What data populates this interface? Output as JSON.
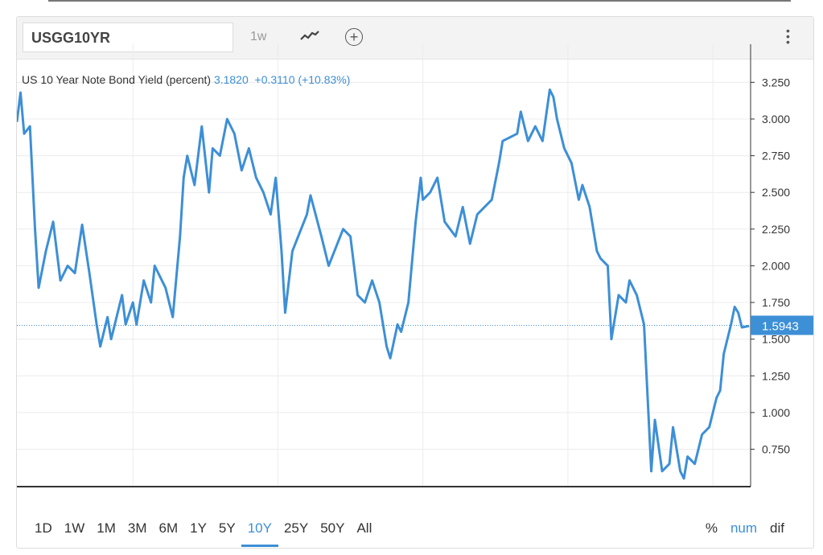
{
  "header": {
    "symbol": "USGG10YR",
    "interval": "1w",
    "chart_type_icon": "line-chart-icon",
    "add_icon": "plus-circle-icon",
    "menu_icon": "vertical-ellipsis-icon"
  },
  "legend": {
    "title": "US 10 Year Note Bond Yield (percent)",
    "value": "3.1820",
    "change": "+0.3110 (+10.83%)"
  },
  "last_price_label": "1.5943",
  "ranges": [
    "1D",
    "1W",
    "1M",
    "3M",
    "6M",
    "1Y",
    "5Y",
    "10Y",
    "25Y",
    "50Y",
    "All"
  ],
  "active_range": "10Y",
  "modes": [
    "%",
    "num",
    "dif"
  ],
  "active_mode": "num",
  "colors": {
    "line": "#3d8fd6",
    "accent": "#3d8fd6"
  },
  "chart_data": {
    "type": "line",
    "xlim": [
      2011.4,
      2021.52
    ],
    "ylim": [
      0.495,
      3.4
    ],
    "x_ticks": [
      "2013",
      "2015",
      "2017",
      "2019",
      "2021"
    ],
    "y_ticks": [
      "0.750",
      "1.000",
      "1.250",
      "1.500",
      "1.750",
      "2.000",
      "2.250",
      "2.500",
      "2.750",
      "3.000",
      "3.250"
    ],
    "last_value": 1.5943,
    "grid": true,
    "series": [
      {
        "x": [
          2011.4,
          2011.45,
          2011.5,
          2011.58,
          2011.65,
          2011.7,
          2011.8,
          2011.9,
          2012.0,
          2012.1,
          2012.2,
          2012.3,
          2012.4,
          2012.5,
          2012.55,
          2012.65,
          2012.7,
          2012.85,
          2012.9,
          2013.0,
          2013.05,
          2013.15,
          2013.25,
          2013.3,
          2013.45,
          2013.55,
          2013.65,
          2013.7,
          2013.75,
          2013.85,
          2013.95,
          2014.05,
          2014.1,
          2014.2,
          2014.3,
          2014.4,
          2014.5,
          2014.6,
          2014.7,
          2014.8,
          2014.9,
          2014.97,
          2015.05,
          2015.1,
          2015.2,
          2015.4,
          2015.45,
          2015.6,
          2015.7,
          2015.9,
          2016.0,
          2016.1,
          2016.2,
          2016.3,
          2016.4,
          2016.5,
          2016.55,
          2016.65,
          2016.7,
          2016.8,
          2016.9,
          2016.97,
          2017.0,
          2017.1,
          2017.2,
          2017.3,
          2017.45,
          2017.55,
          2017.65,
          2017.75,
          2017.85,
          2017.95,
          2018.05,
          2018.1,
          2018.3,
          2018.35,
          2018.45,
          2018.55,
          2018.65,
          2018.75,
          2018.8,
          2018.85,
          2018.95,
          2019.05,
          2019.15,
          2019.2,
          2019.3,
          2019.4,
          2019.45,
          2019.55,
          2019.6,
          2019.7,
          2019.8,
          2019.85,
          2019.95,
          2020.05,
          2020.1,
          2020.15,
          2020.2,
          2020.3,
          2020.4,
          2020.45,
          2020.55,
          2020.6,
          2020.65,
          2020.75,
          2020.85,
          2020.95,
          2021.05,
          2021.1,
          2021.15,
          2021.25,
          2021.3,
          2021.35,
          2021.4,
          2021.5
        ],
        "y": [
          2.98,
          3.18,
          2.9,
          2.95,
          2.25,
          1.85,
          2.1,
          2.3,
          1.9,
          2.0,
          1.95,
          2.28,
          1.95,
          1.6,
          1.45,
          1.65,
          1.5,
          1.8,
          1.6,
          1.75,
          1.6,
          1.9,
          1.75,
          2.0,
          1.85,
          1.65,
          2.2,
          2.6,
          2.75,
          2.55,
          2.95,
          2.5,
          2.8,
          2.75,
          3.0,
          2.9,
          2.65,
          2.8,
          2.6,
          2.5,
          2.35,
          2.6,
          2.1,
          1.68,
          2.1,
          2.35,
          2.48,
          2.2,
          2.0,
          2.25,
          2.2,
          1.8,
          1.75,
          1.9,
          1.75,
          1.45,
          1.37,
          1.6,
          1.55,
          1.75,
          2.3,
          2.6,
          2.45,
          2.5,
          2.6,
          2.3,
          2.2,
          2.4,
          2.15,
          2.35,
          2.4,
          2.45,
          2.7,
          2.85,
          2.9,
          3.05,
          2.85,
          2.95,
          2.85,
          3.2,
          3.15,
          3.0,
          2.8,
          2.7,
          2.45,
          2.55,
          2.4,
          2.1,
          2.05,
          2.0,
          1.5,
          1.8,
          1.75,
          1.9,
          1.8,
          1.6,
          1.1,
          0.6,
          0.95,
          0.6,
          0.65,
          0.9,
          0.6,
          0.55,
          0.7,
          0.65,
          0.85,
          0.9,
          1.1,
          1.15,
          1.4,
          1.6,
          1.72,
          1.68,
          1.58,
          1.59
        ]
      }
    ]
  }
}
